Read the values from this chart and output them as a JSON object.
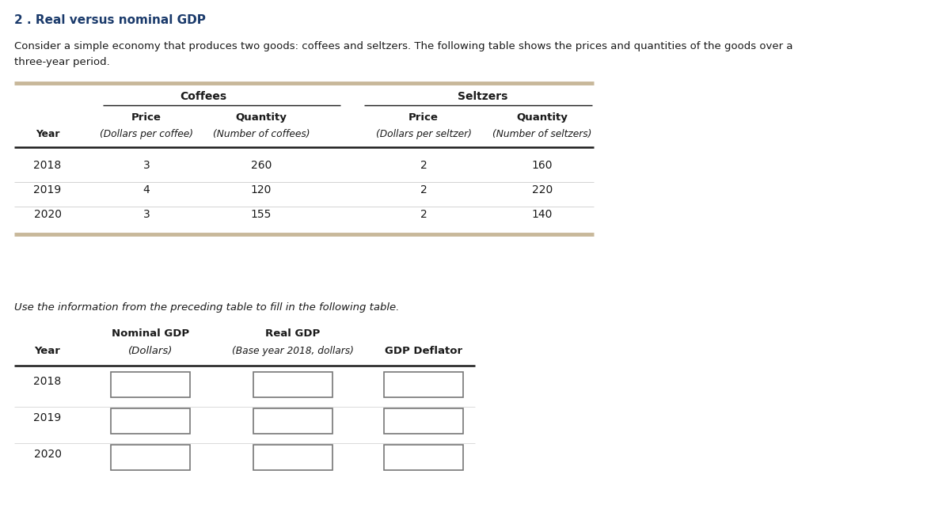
{
  "title": "2 . Real versus nominal GDP",
  "title_color": "#1a3a6b",
  "intro_line1": "Consider a simple economy that produces two goods: coffees and seltzers. The following table shows the prices and quantities of the goods over a",
  "intro_line2": "three-year period.",
  "t1_group_headers": [
    "Coffees",
    "Seltzers"
  ],
  "t1_price_qty": [
    "Price",
    "Quantity",
    "Price",
    "Quantity"
  ],
  "t1_sub_headers": [
    "Year",
    "(Dollars per coffee)",
    "(Number of coffees)",
    "(Dollars per seltzer)",
    "(Number of seltzers)"
  ],
  "t1_data": [
    [
      "2018",
      "3",
      "260",
      "2",
      "160"
    ],
    [
      "2019",
      "4",
      "120",
      "2",
      "220"
    ],
    [
      "2020",
      "3",
      "155",
      "2",
      "140"
    ]
  ],
  "instruction": "Use the information from the preceding table to fill in the following table.",
  "t2_group1": "Nominal GDP",
  "t2_group2": "Real GDP",
  "t2_headers": [
    "Year",
    "(Dollars)",
    "(Base year 2018, dollars)",
    "GDP Deflator"
  ],
  "t2_header_bold": [
    "Nominal GDP",
    "Real GDP",
    "GDP Deflator"
  ],
  "t2_years": [
    "2018",
    "2019",
    "2020"
  ],
  "bg_color": "#ffffff",
  "tan_color": "#c8b89a",
  "text_color": "#1a1a1a",
  "box_edge_color": "#777777"
}
